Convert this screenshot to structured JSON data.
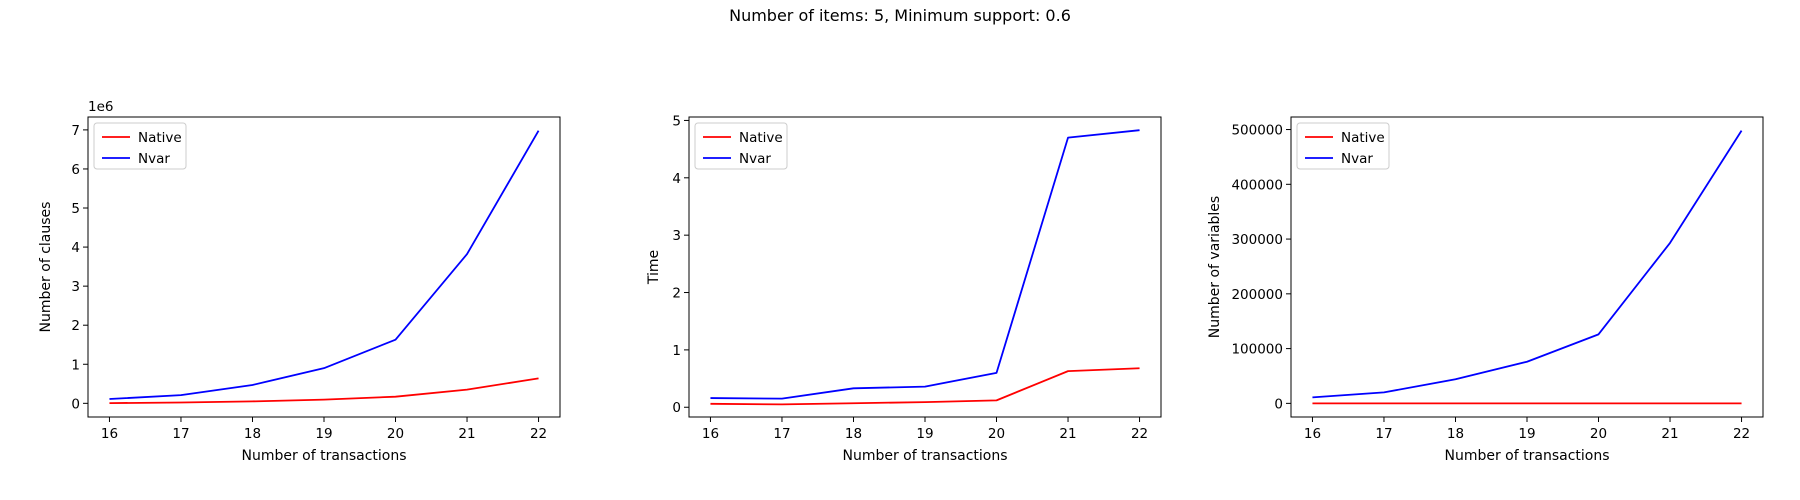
{
  "figure": {
    "title": "Number of items: 5, Minimum support: 0.6"
  },
  "chart_data": [
    {
      "type": "line",
      "x": [
        16,
        17,
        18,
        19,
        20,
        21,
        22
      ],
      "series": [
        {
          "name": "Native",
          "color": "#ff0000",
          "values": [
            5000,
            22000,
            50000,
            95000,
            170000,
            350000,
            640000
          ]
        },
        {
          "name": "Nvar",
          "color": "#0000ff",
          "values": [
            110000,
            210000,
            470000,
            900000,
            1630000,
            3820000,
            6980000
          ]
        }
      ],
      "xlabel": "Number of transactions",
      "ylabel": "Number of clauses",
      "offset_text": "1e6",
      "xlim": [
        15.7,
        22.3
      ],
      "ylim": [
        -350000,
        7330000
      ],
      "xticks": [
        16,
        17,
        18,
        19,
        20,
        21,
        22
      ],
      "yticks": [
        0,
        1000000,
        2000000,
        3000000,
        4000000,
        5000000,
        6000000,
        7000000
      ],
      "ytick_labels": [
        "0",
        "1",
        "2",
        "3",
        "4",
        "5",
        "6",
        "7"
      ],
      "legend": "upper-left",
      "grid": false
    },
    {
      "type": "line",
      "x": [
        16,
        17,
        18,
        19,
        20,
        21,
        22
      ],
      "series": [
        {
          "name": "Native",
          "color": "#ff0000",
          "values": [
            0.06,
            0.05,
            0.07,
            0.09,
            0.12,
            0.63,
            0.68
          ]
        },
        {
          "name": "Nvar",
          "color": "#0000ff",
          "values": [
            0.16,
            0.15,
            0.33,
            0.36,
            0.6,
            4.7,
            4.83
          ]
        }
      ],
      "xlabel": "Number of transactions",
      "ylabel": "Time",
      "xlim": [
        15.7,
        22.3
      ],
      "ylim": [
        -0.17,
        5.06
      ],
      "xticks": [
        16,
        17,
        18,
        19,
        20,
        21,
        22
      ],
      "yticks": [
        0,
        1,
        2,
        3,
        4,
        5
      ],
      "ytick_labels": [
        "0",
        "1",
        "2",
        "3",
        "4",
        "5"
      ],
      "legend": "upper-left",
      "grid": false
    },
    {
      "type": "line",
      "x": [
        16,
        17,
        18,
        19,
        20,
        21,
        22
      ],
      "series": [
        {
          "name": "Native",
          "color": "#ff0000",
          "values": [
            0,
            0,
            0,
            0,
            0,
            0,
            0
          ]
        },
        {
          "name": "Nvar",
          "color": "#0000ff",
          "values": [
            11000,
            20000,
            44000,
            76000,
            126000,
            293000,
            498000
          ]
        }
      ],
      "xlabel": "Number of transactions",
      "ylabel": "Number of variables",
      "xlim": [
        15.7,
        22.3
      ],
      "ylim": [
        -24900,
        522900
      ],
      "xticks": [
        16,
        17,
        18,
        19,
        20,
        21,
        22
      ],
      "yticks": [
        0,
        100000,
        200000,
        300000,
        400000,
        500000
      ],
      "ytick_labels": [
        "0",
        "100000",
        "200000",
        "300000",
        "400000",
        "500000"
      ],
      "legend": "upper-left",
      "grid": false
    }
  ]
}
